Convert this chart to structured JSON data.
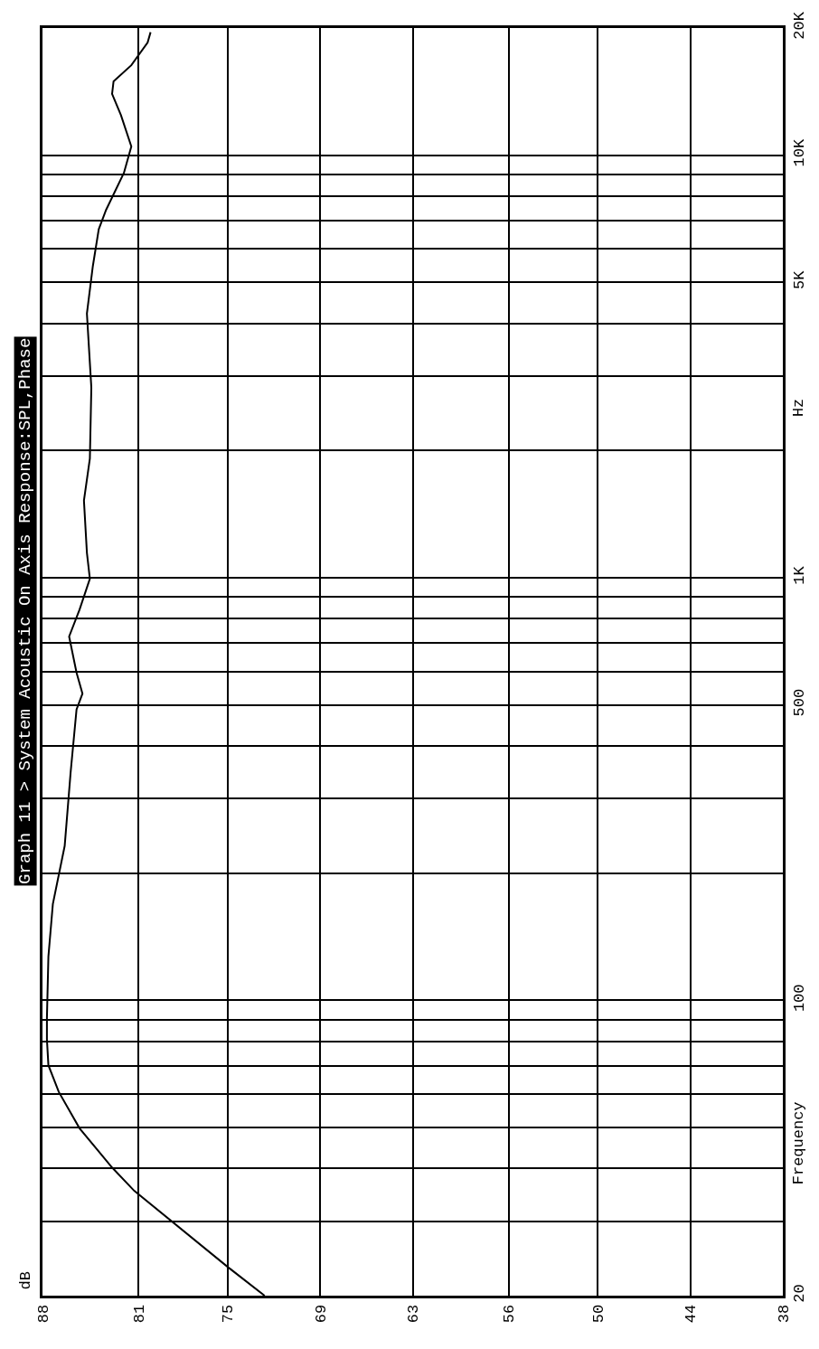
{
  "chart_data": {
    "type": "line",
    "orientation": "horizontal",
    "title": "Graph 11 > System Acoustic On Axis Response:SPL,Phase",
    "ylabel": "Frequency",
    "annotations": [
      "Hz",
      "dB"
    ],
    "x": [
      20,
      23.4,
      35.4,
      40.2,
      49.8,
      60.7,
      70.2,
      80.8,
      90.8,
      127,
      169,
      232,
      346,
      488,
      532,
      596,
      726,
      840,
      995,
      1146,
      1524,
      1915,
      2820,
      4220,
      5460,
      6680,
      7430,
      9080,
      10490,
      12440,
      13960,
      14960,
      16330,
      18480,
      19550
    ],
    "series": [
      {
        "color": "#000000",
        "values": [
          73.0,
          75.5,
          81.8,
          83.3,
          85.5,
          86.9,
          87.6,
          87.7,
          87.7,
          87.6,
          87.3,
          86.5,
          86.1,
          85.7,
          85.3,
          85.7,
          86.2,
          85.5,
          84.8,
          85.0,
          85.2,
          84.8,
          84.7,
          85.0,
          84.6,
          84.2,
          83.7,
          82.5,
          82.0,
          82.7,
          83.3,
          83.2,
          82.0,
          80.9,
          80.7
        ]
      }
    ],
    "xlim": [
      88,
      38
    ],
    "xticks": [
      88,
      {
        "value": 81.5,
        "label": "81"
      },
      {
        "value": 75.5,
        "label": "75"
      },
      {
        "value": 69.25,
        "label": "69"
      },
      63,
      {
        "value": 56.5,
        "label": "56"
      },
      {
        "value": 50.5,
        "label": "50"
      },
      {
        "value": 44.25,
        "label": "44"
      },
      38
    ],
    "ylim": [
      20,
      20000
    ],
    "log": "y",
    "yticks": [
      20,
      {
        "value": 30,
        "label": null
      },
      {
        "value": 40,
        "label": null
      },
      {
        "value": 50,
        "label": null
      },
      {
        "value": 60,
        "label": null
      },
      {
        "value": 70,
        "label": null
      },
      {
        "value": 80,
        "label": null
      },
      {
        "value": 90,
        "label": null
      },
      100,
      {
        "value": 200,
        "label": null
      },
      {
        "value": 300,
        "label": null
      },
      {
        "value": 400,
        "label": null
      },
      500,
      {
        "value": 600,
        "label": null
      },
      {
        "value": 700,
        "label": null
      },
      {
        "value": 800,
        "label": null
      },
      {
        "value": 900,
        "label": null
      },
      {
        "value": 1000,
        "label": "1K"
      },
      {
        "value": 2000,
        "label": null
      },
      {
        "value": 3000,
        "label": null
      },
      {
        "value": 4000,
        "label": null
      },
      {
        "value": 5000,
        "label": "5K"
      },
      {
        "value": 6000,
        "label": null
      },
      {
        "value": 7000,
        "label": null
      },
      {
        "value": 8000,
        "label": null
      },
      {
        "value": 9000,
        "label": null
      },
      {
        "value": 10000,
        "label": "10K"
      },
      {
        "value": 20000,
        "label": "20K"
      }
    ],
    "grid": true,
    "legend": false,
    "marker": "none",
    "line_style": "solid"
  }
}
